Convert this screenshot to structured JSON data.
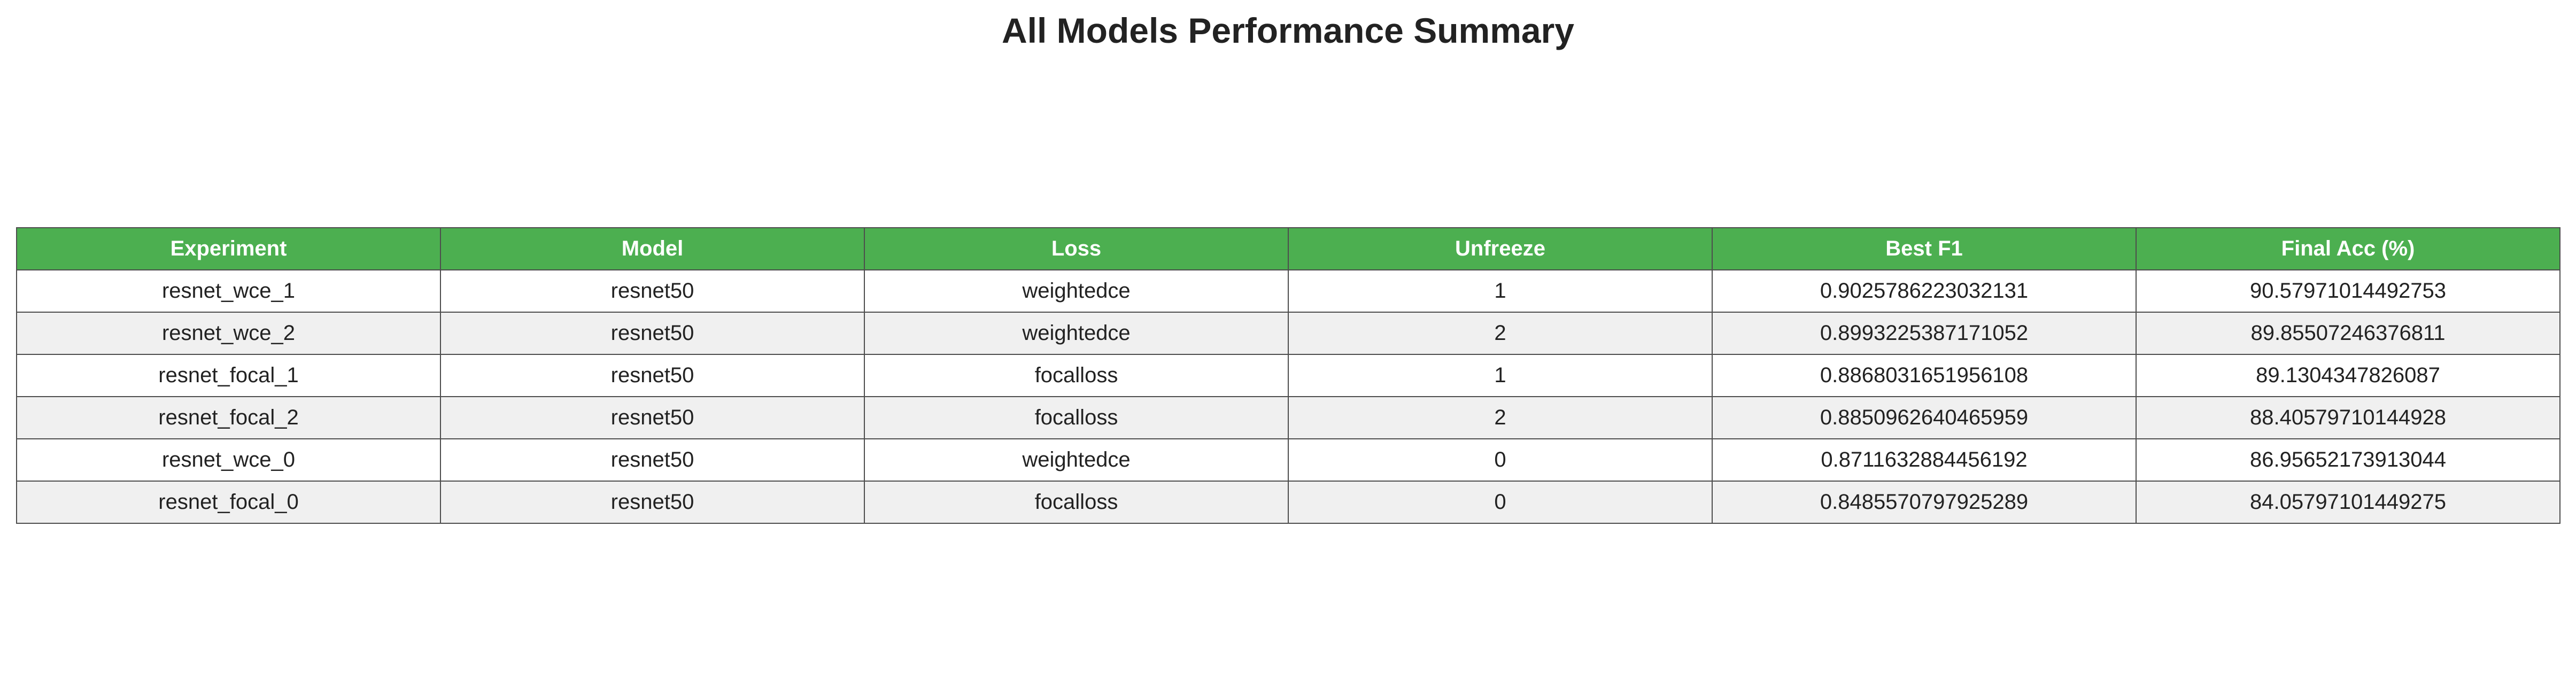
{
  "chart_data": {
    "type": "table",
    "title": "All Models Performance Summary",
    "columns": [
      "Experiment",
      "Model",
      "Loss",
      "Unfreeze",
      "Best F1",
      "Final Acc (%)"
    ],
    "rows": [
      [
        "resnet_wce_1",
        "resnet50",
        "weightedce",
        "1",
        "0.9025786223032131",
        "90.57971014492753"
      ],
      [
        "resnet_wce_2",
        "resnet50",
        "weightedce",
        "2",
        "0.8993225387171052",
        "89.85507246376811"
      ],
      [
        "resnet_focal_1",
        "resnet50",
        "focalloss",
        "1",
        "0.8868031651956108",
        "89.1304347826087"
      ],
      [
        "resnet_focal_2",
        "resnet50",
        "focalloss",
        "2",
        "0.8850962640465959",
        "88.40579710144928"
      ],
      [
        "resnet_wce_0",
        "resnet50",
        "weightedce",
        "0",
        "0.8711632884456192",
        "86.95652173913044"
      ],
      [
        "resnet_focal_0",
        "resnet50",
        "focalloss",
        "0",
        "0.8485570797925289",
        "84.05797101449275"
      ]
    ],
    "header_color": "#4caf50",
    "header_text_color": "#ffffff",
    "row_colors": [
      "#ffffff",
      "#f0f0f0"
    ],
    "border_color": "#4d4d4d"
  }
}
